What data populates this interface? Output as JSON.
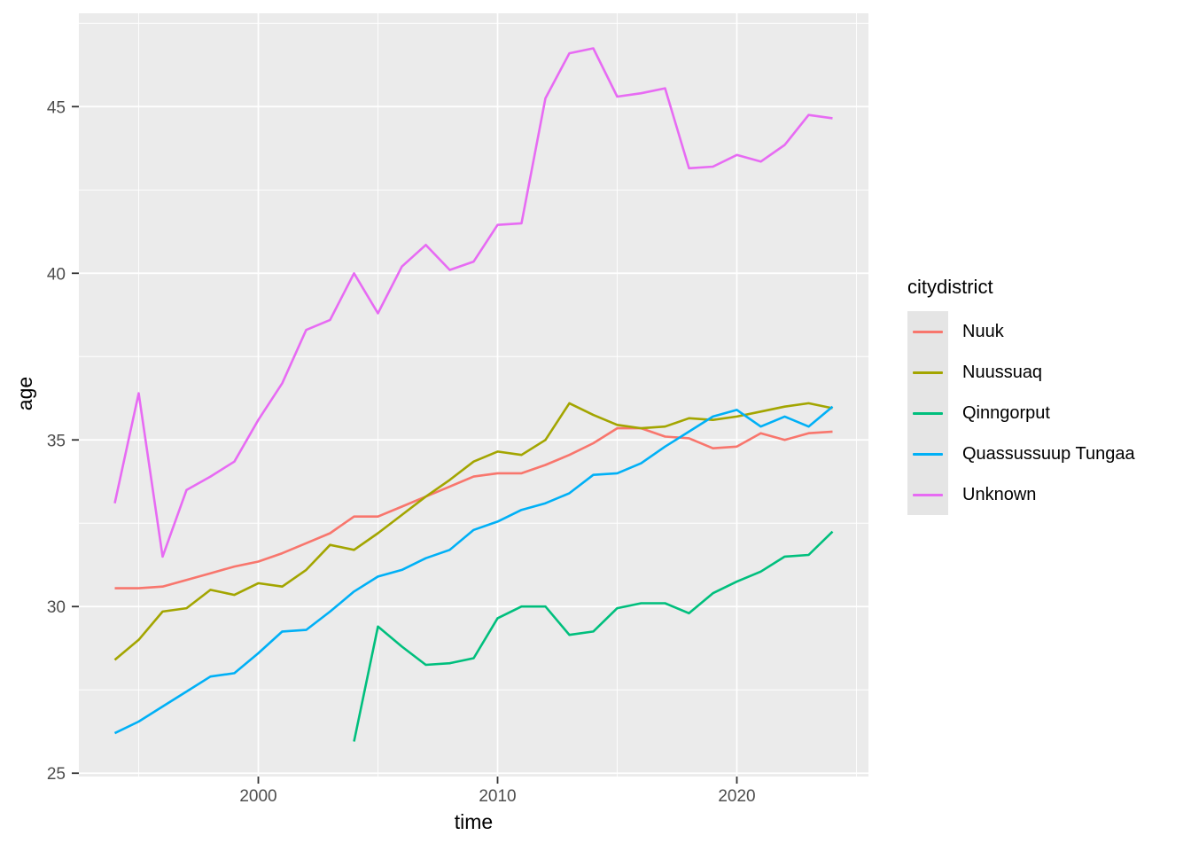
{
  "axes": {
    "x_title": "time",
    "y_title": "age"
  },
  "legend": {
    "title": "citydistrict",
    "items": [
      {
        "label": "Nuuk"
      },
      {
        "label": "Nuussuaq"
      },
      {
        "label": "Qinngorput"
      },
      {
        "label": "Quassussuup Tungaa"
      },
      {
        "label": "Unknown"
      }
    ]
  },
  "chart_data": {
    "type": "line",
    "title": "",
    "xlabel": "time",
    "ylabel": "age",
    "legend_title": "citydistrict",
    "legend_position": "right",
    "grid": true,
    "panel_bg": "#EBEBEB",
    "grid_color": "#FFFFFF",
    "tick_color": "#333333",
    "tick_label_color": "#4D4D4D",
    "axis_title_color": "#000000",
    "xlim": [
      1992.5,
      2025.5
    ],
    "ylim": [
      24.9,
      47.8
    ],
    "x_major_ticks": [
      {
        "value": 2000,
        "label": "2000"
      },
      {
        "value": 2010,
        "label": "2010"
      },
      {
        "value": 2020,
        "label": "2020"
      }
    ],
    "y_major_ticks": [
      {
        "value": 25,
        "label": "25"
      },
      {
        "value": 30,
        "label": "30"
      },
      {
        "value": 35,
        "label": "35"
      },
      {
        "value": 40,
        "label": "40"
      },
      {
        "value": 45,
        "label": "45"
      }
    ],
    "x_minor": [
      1995,
      2005,
      2015,
      2025
    ],
    "y_minor": [
      27.5,
      32.5,
      37.5,
      42.5,
      47.5
    ],
    "x": [
      1994,
      1995,
      1996,
      1997,
      1998,
      1999,
      2000,
      2001,
      2002,
      2003,
      2004,
      2005,
      2006,
      2007,
      2008,
      2009,
      2010,
      2011,
      2012,
      2013,
      2014,
      2015,
      2016,
      2017,
      2018,
      2019,
      2020,
      2021,
      2022,
      2023,
      2024
    ],
    "series": [
      {
        "name": "Nuuk",
        "color": "#F8766D",
        "values": [
          30.55,
          30.55,
          30.6,
          30.8,
          31.0,
          31.2,
          31.35,
          31.6,
          31.9,
          32.2,
          32.7,
          32.7,
          33.0,
          33.3,
          33.6,
          33.9,
          34.0,
          34.0,
          34.25,
          34.55,
          34.9,
          35.35,
          35.35,
          35.1,
          35.05,
          34.75,
          34.8,
          35.2,
          35.0,
          35.2,
          35.25
        ]
      },
      {
        "name": "Nuussuaq",
        "color": "#A3A500",
        "values": [
          28.4,
          29.0,
          29.85,
          29.95,
          30.5,
          30.35,
          30.7,
          30.6,
          31.1,
          31.85,
          31.7,
          32.2,
          32.75,
          33.3,
          33.8,
          34.35,
          34.65,
          34.55,
          35.0,
          36.1,
          35.75,
          35.45,
          35.35,
          35.4,
          35.65,
          35.6,
          35.7,
          35.85,
          36.0,
          36.1,
          35.95
        ]
      },
      {
        "name": "Qinngorput",
        "color": "#00BF7D",
        "values": [
          null,
          null,
          null,
          null,
          null,
          null,
          null,
          null,
          null,
          null,
          25.95,
          29.4,
          28.8,
          28.25,
          28.3,
          28.45,
          29.65,
          30.0,
          30.0,
          29.15,
          29.25,
          29.95,
          30.1,
          30.1,
          29.8,
          30.4,
          30.75,
          31.05,
          31.5,
          31.55,
          32.25
        ]
      },
      {
        "name": "Quassussuup Tungaa",
        "color": "#00B0F6",
        "values": [
          26.2,
          26.55,
          27.0,
          27.45,
          27.9,
          28.0,
          28.6,
          29.25,
          29.3,
          29.85,
          30.45,
          30.9,
          31.1,
          31.45,
          31.7,
          32.3,
          32.55,
          32.9,
          33.1,
          33.4,
          33.95,
          34.0,
          34.3,
          34.8,
          35.25,
          35.7,
          35.9,
          35.4,
          35.7,
          35.4,
          36.0
        ]
      },
      {
        "name": "Unknown",
        "color": "#E76BF3",
        "values": [
          33.1,
          36.4,
          31.5,
          33.5,
          33.9,
          34.35,
          35.6,
          36.7,
          38.3,
          38.6,
          40.0,
          38.8,
          40.2,
          40.85,
          40.1,
          40.35,
          41.45,
          41.5,
          45.25,
          46.6,
          46.75,
          45.3,
          45.4,
          45.55,
          43.15,
          43.2,
          43.55,
          43.35,
          43.85,
          44.75,
          44.65
        ]
      }
    ]
  }
}
